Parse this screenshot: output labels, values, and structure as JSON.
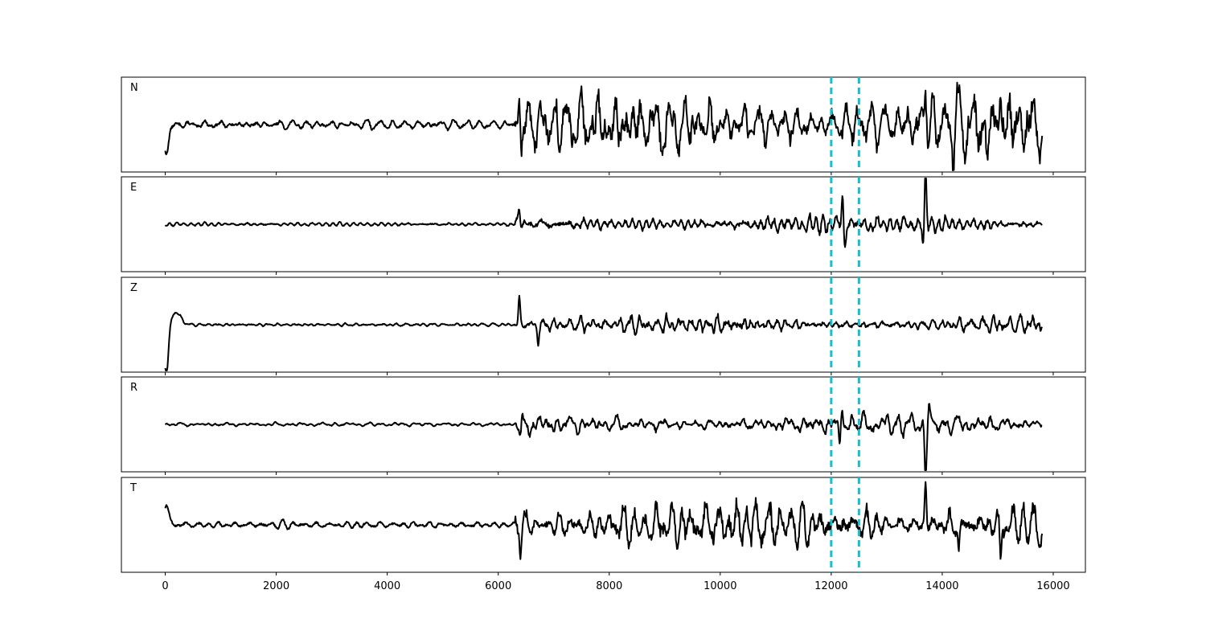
{
  "chart_data": {
    "type": "line",
    "title": "",
    "xlabel": "",
    "ylabel": "",
    "xlim": [
      -790,
      16580
    ],
    "xticks": [
      0,
      2000,
      4000,
      6000,
      8000,
      10000,
      12000,
      14000,
      16000
    ],
    "xtick_labels": [
      "0",
      "2000",
      "4000",
      "6000",
      "8000",
      "10000",
      "12000",
      "14000",
      "16000"
    ],
    "grid": false,
    "legend": "none",
    "n_samples": 15800,
    "line_color": "#000000",
    "marker_color": "#17becf",
    "markers": [
      {
        "x": 12000,
        "style": "dashed"
      },
      {
        "x": 12500,
        "style": "dashed"
      }
    ],
    "panels": [
      {
        "label": "N",
        "ylim": [
          -1,
          1
        ],
        "baseline": 0.0,
        "onset": {
          "amp": -0.6,
          "sign": -1,
          "width": 60
        },
        "noise_amp": 0.07,
        "signal_amp": 0.55,
        "signal_start": 6300,
        "spikes": [
          {
            "x": 6380,
            "y": 0.72
          },
          {
            "x": 6420,
            "y": -0.62
          },
          {
            "x": 13700,
            "y": 0.85
          },
          {
            "x": 14800,
            "y": -0.8
          },
          {
            "x": 15050,
            "y": 0.85
          }
        ]
      },
      {
        "label": "E",
        "ylim": [
          -1,
          1
        ],
        "baseline": 0.0,
        "onset": null,
        "noise_amp": 0.03,
        "signal_amp": 0.16,
        "signal_start": 6300,
        "spikes": [
          {
            "x": 6380,
            "y": 0.35
          },
          {
            "x": 12200,
            "y": 0.6
          },
          {
            "x": 12250,
            "y": -0.45
          },
          {
            "x": 13700,
            "y": 1.15
          },
          {
            "x": 13660,
            "y": -0.42
          }
        ]
      },
      {
        "label": "Z",
        "ylim": [
          -1,
          1
        ],
        "baseline": 0.0,
        "onset": {
          "amp": -1.1,
          "sign": -1,
          "width": 50
        },
        "onset_bump": {
          "x": 200,
          "y": 0.25
        },
        "noise_amp": 0.025,
        "signal_amp": 0.14,
        "signal_start": 6300,
        "spikes": [
          {
            "x": 6380,
            "y": 0.55
          },
          {
            "x": 6720,
            "y": -0.35
          }
        ]
      },
      {
        "label": "R",
        "ylim": [
          -1,
          1
        ],
        "baseline": 0.0,
        "onset": null,
        "noise_amp": 0.025,
        "signal_amp": 0.14,
        "signal_start": 6300,
        "spikes": [
          {
            "x": 6400,
            "y": -0.35
          },
          {
            "x": 12200,
            "y": 0.45
          },
          {
            "x": 12150,
            "y": -0.55
          },
          {
            "x": 13700,
            "y": -1.2
          },
          {
            "x": 13760,
            "y": 0.35
          }
        ]
      },
      {
        "label": "T",
        "ylim": [
          -1,
          1
        ],
        "baseline": 0.0,
        "onset": {
          "amp": 0.45,
          "sign": 1,
          "width": 60
        },
        "noise_amp": 0.06,
        "signal_amp": 0.45,
        "signal_start": 6300,
        "spikes": [
          {
            "x": 6400,
            "y": -0.55
          },
          {
            "x": 13700,
            "y": 0.9
          },
          {
            "x": 14300,
            "y": -0.6
          },
          {
            "x": 15050,
            "y": -0.7
          }
        ]
      }
    ]
  }
}
